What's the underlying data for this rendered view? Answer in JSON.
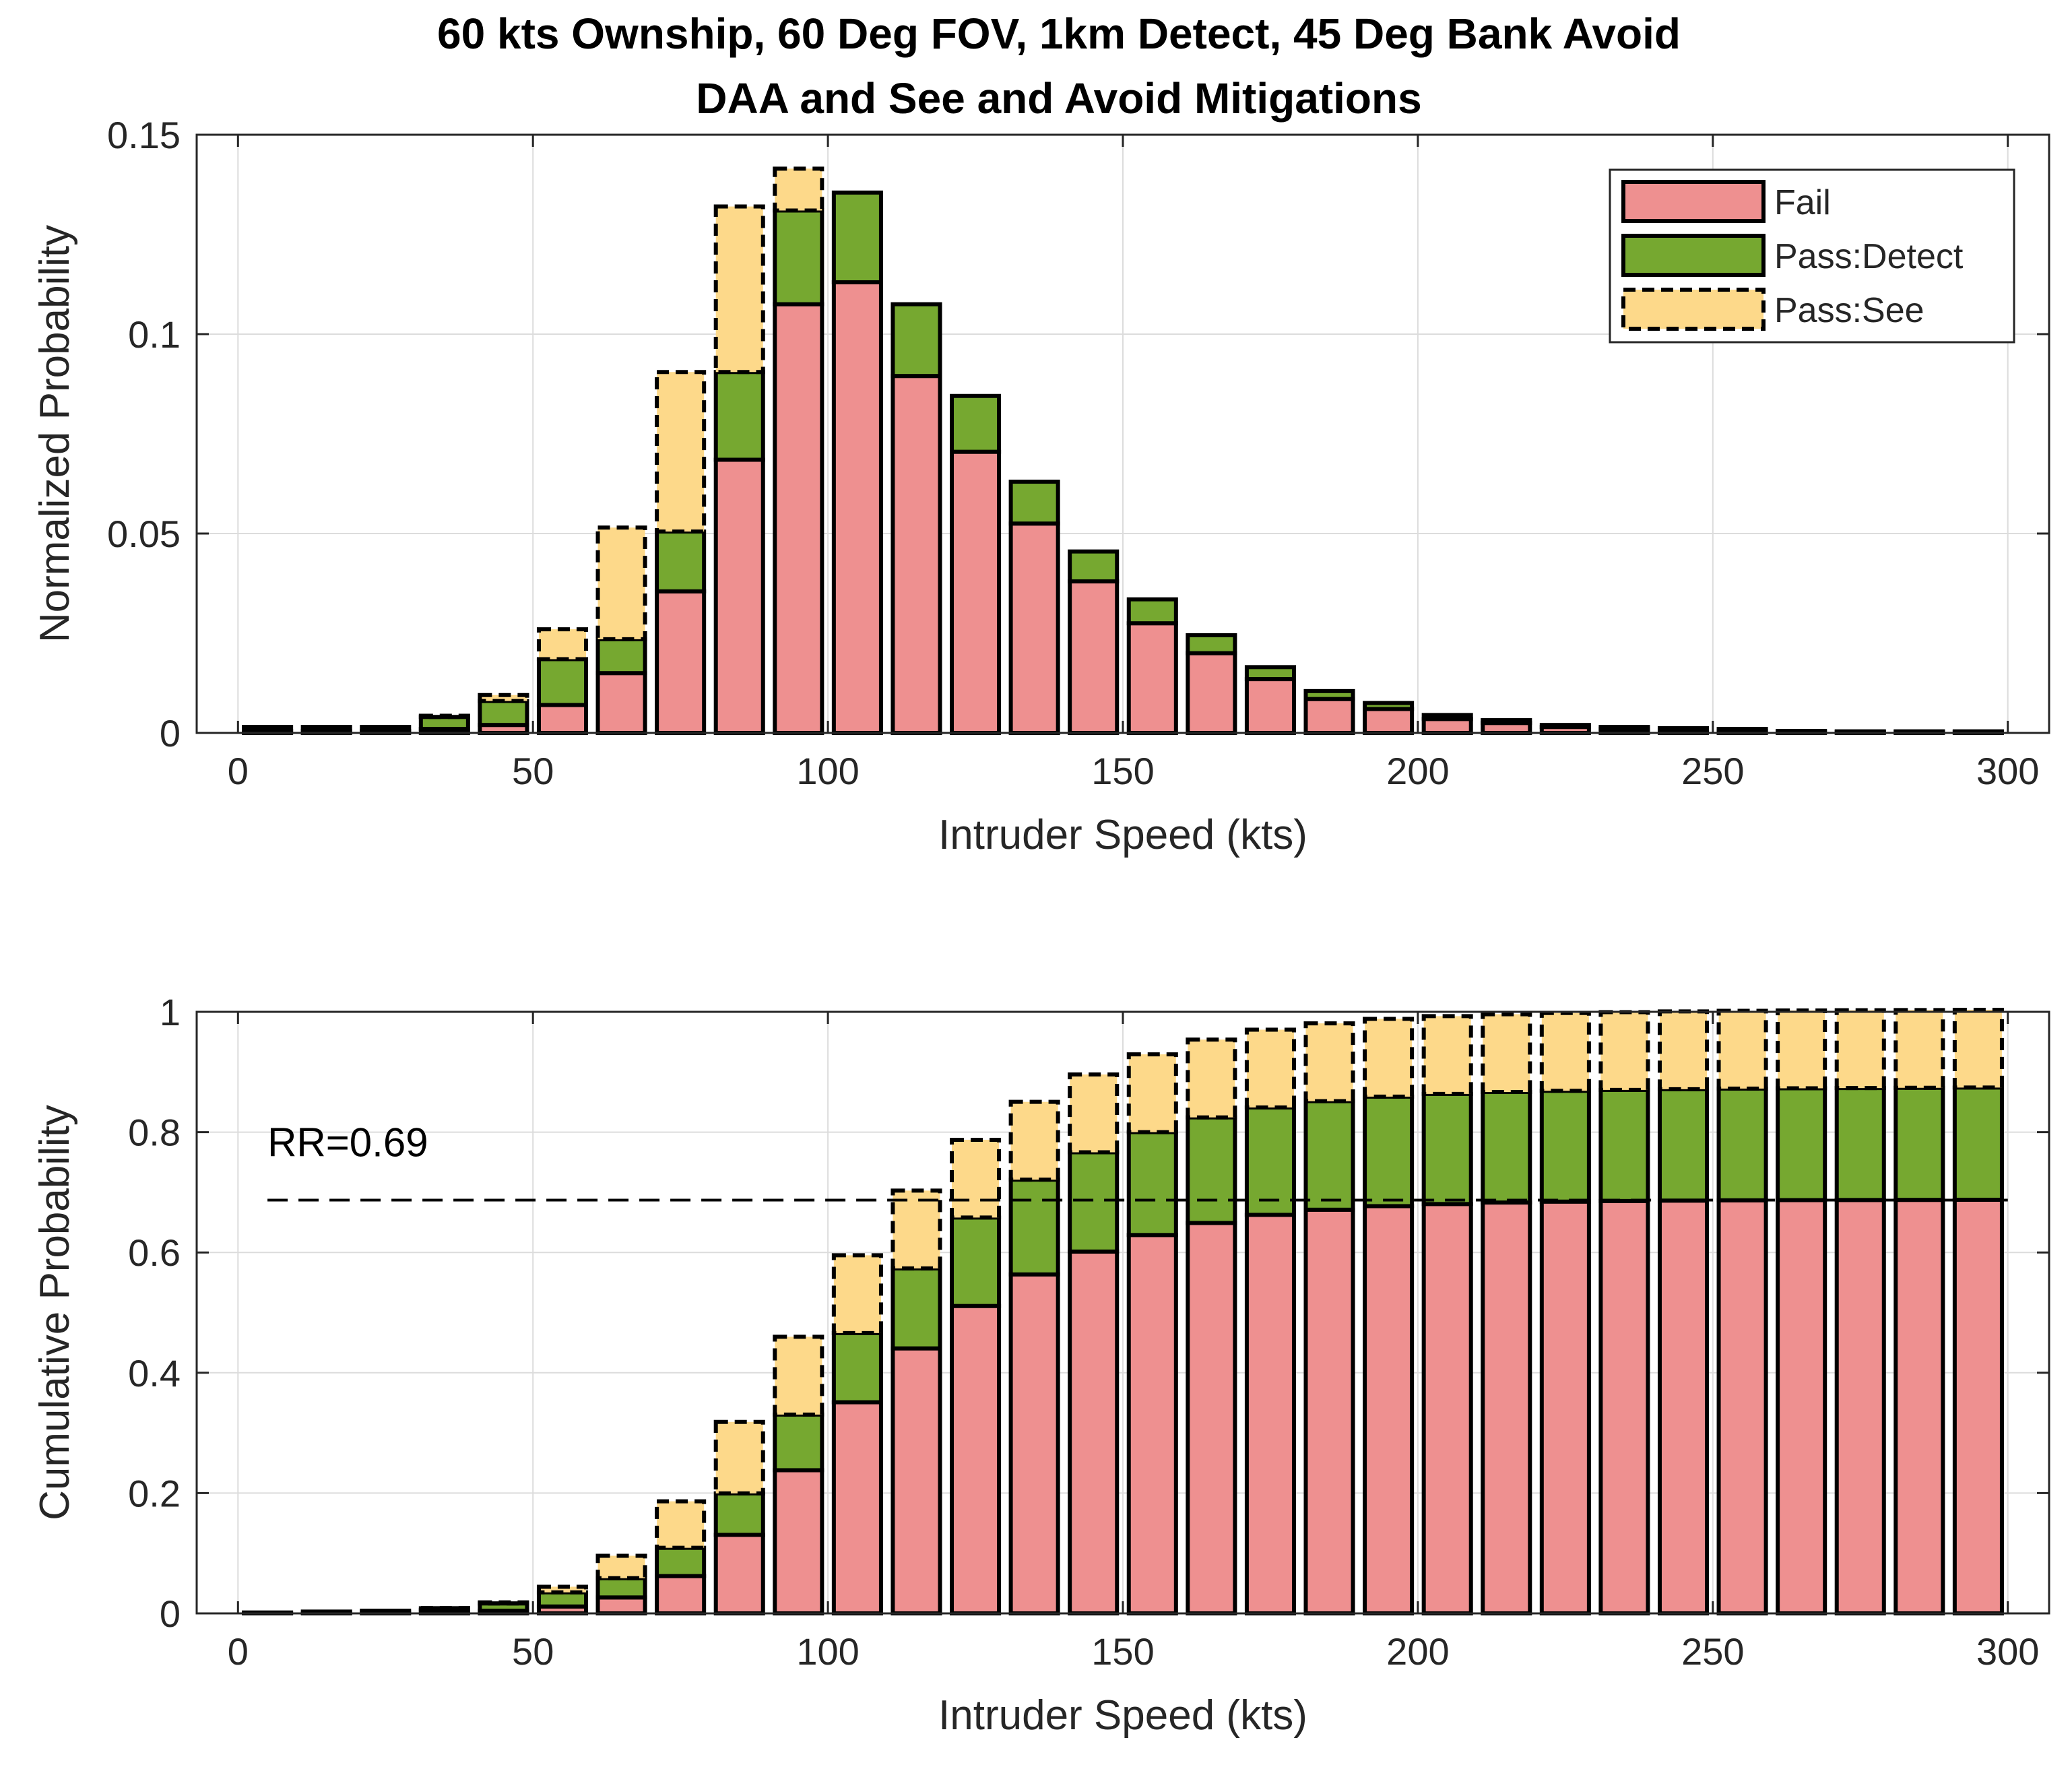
{
  "chart_data": [
    {
      "type": "bar",
      "stacked": true,
      "title": "60 kts Ownship, 60 Deg FOV, 1km Detect, 45 Deg Bank Avoid",
      "subtitle": "DAA and See and Avoid Mitigations",
      "xlabel": "Intruder Speed (kts)",
      "ylabel": "Normalized Probability",
      "xlim": [
        -7,
        307
      ],
      "ylim": [
        0,
        0.15
      ],
      "xticks": [
        0,
        50,
        100,
        150,
        200,
        250,
        300
      ],
      "xtick_labels": [
        "0",
        "50",
        "100",
        "150",
        "200",
        "250",
        "300"
      ],
      "yticks": [
        0,
        0.05,
        0.1,
        0.15
      ],
      "ytick_labels": [
        "0",
        "0.05",
        "0.1",
        "0.15"
      ],
      "grid": true,
      "legend": {
        "placement": "top-right",
        "entries": [
          {
            "label": "Fail",
            "color": "#ee9090",
            "style": "solid"
          },
          {
            "label": "Pass:Detect",
            "color": "#76a830",
            "style": "solid"
          },
          {
            "label": "Pass:See",
            "color": "#fdd98a",
            "style": "dashed"
          }
        ]
      },
      "x": [
        5,
        15,
        25,
        35,
        45,
        55,
        65,
        75,
        85,
        95,
        105,
        115,
        125,
        135,
        145,
        155,
        165,
        175,
        185,
        195,
        205,
        215,
        225,
        235,
        245,
        255,
        265,
        275,
        285,
        295
      ],
      "series": [
        {
          "name": "Fail",
          "values": [
            0.0005,
            0.0005,
            0.0005,
            0.001,
            0.002,
            0.007,
            0.015,
            0.0355,
            0.0685,
            0.1075,
            0.113,
            0.0895,
            0.0705,
            0.0525,
            0.038,
            0.0275,
            0.02,
            0.0135,
            0.0085,
            0.006,
            0.0035,
            0.0025,
            0.0015,
            0.001,
            0.0007,
            0.0005,
            0.0003,
            0.0002,
            0.0002,
            0.0002
          ]
        },
        {
          "name": "Pass:Detect",
          "values": [
            0.001,
            0.001,
            0.001,
            0.003,
            0.006,
            0.0115,
            0.0085,
            0.015,
            0.022,
            0.0235,
            0.0225,
            0.018,
            0.014,
            0.0105,
            0.0075,
            0.006,
            0.0045,
            0.003,
            0.002,
            0.0015,
            0.001,
            0.0007,
            0.0005,
            0.0005,
            0.0005,
            0.0005,
            0.0002,
            0.0002,
            0.0002,
            0.0002
          ]
        },
        {
          "name": "Pass:See",
          "values": [
            0,
            0,
            0,
            0.0003,
            0.0015,
            0.0075,
            0.028,
            0.04,
            0.0415,
            0.0105,
            0,
            0,
            0,
            0,
            0,
            0,
            0,
            0,
            0,
            0,
            0,
            0,
            0,
            0,
            0,
            0,
            0,
            0,
            0,
            0
          ]
        }
      ]
    },
    {
      "type": "bar",
      "stacked": true,
      "xlabel": "Intruder Speed (kts)",
      "ylabel": "Cumulative Probability",
      "xlim": [
        -7,
        307
      ],
      "ylim": [
        0,
        1
      ],
      "xticks": [
        0,
        50,
        100,
        150,
        200,
        250,
        300
      ],
      "xtick_labels": [
        "0",
        "50",
        "100",
        "150",
        "200",
        "250",
        "300"
      ],
      "yticks": [
        0,
        0.2,
        0.4,
        0.6,
        0.8,
        1
      ],
      "ytick_labels": [
        "0",
        "0.2",
        "0.4",
        "0.6",
        "0.8",
        "1"
      ],
      "grid": true,
      "annotation": {
        "text": "RR=0.69",
        "x": 5,
        "y": 0.76
      },
      "reference_line": {
        "y": 0.687,
        "x_range": [
          5,
          300
        ],
        "style": "dashed"
      },
      "x": [
        5,
        15,
        25,
        35,
        45,
        55,
        65,
        75,
        85,
        95,
        105,
        115,
        125,
        135,
        145,
        155,
        165,
        175,
        185,
        195,
        205,
        215,
        225,
        235,
        245,
        255,
        265,
        275,
        285,
        295
      ],
      "series": [
        {
          "name": "Fail",
          "cumulative": [
            0.0005,
            0.001,
            0.0015,
            0.0025,
            0.0045,
            0.0115,
            0.0265,
            0.062,
            0.1305,
            0.238,
            0.351,
            0.4405,
            0.511,
            0.5635,
            0.6015,
            0.629,
            0.649,
            0.6625,
            0.671,
            0.677,
            0.6805,
            0.683,
            0.6845,
            0.6855,
            0.6862,
            0.6867,
            0.687,
            0.6872,
            0.6874,
            0.6876
          ]
        },
        {
          "name": "Pass:Detect",
          "cumulative": [
            0.001,
            0.002,
            0.003,
            0.006,
            0.012,
            0.0235,
            0.032,
            0.047,
            0.069,
            0.0925,
            0.115,
            0.133,
            0.147,
            0.1575,
            0.165,
            0.171,
            0.1755,
            0.1785,
            0.1805,
            0.182,
            0.183,
            0.1837,
            0.1842,
            0.1847,
            0.1852,
            0.1857,
            0.1859,
            0.1861,
            0.1863,
            0.1865
          ]
        },
        {
          "name": "Pass:See",
          "cumulative": [
            0,
            0,
            0,
            0.0003,
            0.0018,
            0.0093,
            0.0373,
            0.0773,
            0.1188,
            0.1293,
            0.1293,
            0.1293,
            0.1293,
            0.1293,
            0.1293,
            0.1293,
            0.1293,
            0.1293,
            0.1293,
            0.1293,
            0.1293,
            0.1293,
            0.1293,
            0.1293,
            0.1293,
            0.1293,
            0.1293,
            0.1293,
            0.1293,
            0.1293
          ]
        }
      ]
    }
  ]
}
